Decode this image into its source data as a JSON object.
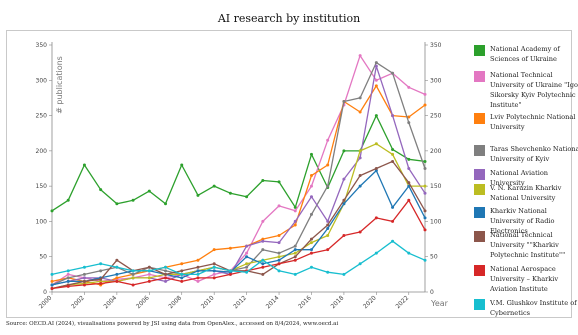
{
  "title": "AI research by institution",
  "source": "Source: OECD.AI (2024), visualisations powered by JSI using data from OpenAlex., accessed on 8/4/2024, www.oecd.ai",
  "chart_data": {
    "type": "line",
    "title": "AI research by institution",
    "ylabel": "# publications",
    "xlabel": "Year",
    "ylim": [
      0,
      350
    ],
    "yticks": [
      0,
      50,
      100,
      150,
      200,
      250,
      300,
      350
    ],
    "xlim": [
      2000,
      2023
    ],
    "xticks": [
      2000,
      2002,
      2004,
      2006,
      2008,
      2010,
      2012,
      2014,
      2016,
      2018,
      2020,
      2022
    ],
    "grid": false,
    "legend_position": "right",
    "x": [
      2000,
      2001,
      2002,
      2003,
      2004,
      2005,
      2006,
      2007,
      2008,
      2009,
      2010,
      2011,
      2012,
      2013,
      2014,
      2015,
      2016,
      2017,
      2018,
      2019,
      2020,
      2021,
      2022,
      2023
    ],
    "series": [
      {
        "name": "National Academy of Sciences of Ukraine",
        "color": "#2ca02c",
        "values": [
          115,
          130,
          180,
          145,
          125,
          130,
          143,
          125,
          180,
          137,
          150,
          140,
          135,
          158,
          156,
          120,
          195,
          148,
          200,
          200,
          250,
          202,
          188,
          185
        ]
      },
      {
        "name": "National Technical University of Ukraine \"Igor Sikorsky Kyiv Polytechnic Institute\"",
        "color": "#e377c2",
        "values": [
          10,
          25,
          20,
          15,
          18,
          20,
          25,
          20,
          25,
          15,
          25,
          30,
          55,
          100,
          122,
          115,
          150,
          215,
          265,
          335,
          300,
          310,
          290,
          280
        ]
      },
      {
        "name": "Lviv Polytechnic National University",
        "color": "#ff7f0e",
        "values": [
          15,
          20,
          15,
          10,
          20,
          25,
          30,
          35,
          40,
          45,
          60,
          62,
          65,
          75,
          80,
          95,
          165,
          180,
          270,
          255,
          292,
          250,
          248,
          265
        ]
      },
      {
        "name": "Taras Shevchenko National University of Kyiv",
        "color": "#7f7f7f",
        "values": [
          10,
          20,
          25,
          30,
          35,
          25,
          35,
          30,
          25,
          30,
          35,
          30,
          35,
          60,
          55,
          65,
          110,
          150,
          270,
          275,
          325,
          310,
          240,
          175
        ]
      },
      {
        "name": "National Aviation University",
        "color": "#9467bd",
        "values": [
          10,
          15,
          20,
          20,
          15,
          20,
          20,
          15,
          25,
          30,
          30,
          25,
          65,
          72,
          70,
          100,
          135,
          100,
          160,
          190,
          320,
          250,
          175,
          140
        ]
      },
      {
        "name": "V. N. Karazin Kharkiv National University",
        "color": "#bcbd22",
        "values": [
          5,
          10,
          12,
          15,
          15,
          20,
          20,
          25,
          25,
          30,
          35,
          30,
          40,
          45,
          50,
          55,
          70,
          80,
          125,
          200,
          210,
          195,
          150,
          150
        ]
      },
      {
        "name": "Kharkiv National University of Radio Electronics",
        "color": "#1f77b4",
        "values": [
          10,
          15,
          15,
          20,
          25,
          30,
          30,
          25,
          20,
          30,
          30,
          28,
          50,
          40,
          45,
          60,
          60,
          90,
          125,
          150,
          172,
          120,
          150,
          105
        ]
      },
      {
        "name": "National Technical University \"\"Kharkiv Polytechnic Institute\"\"",
        "color": "#8c564b",
        "values": [
          5,
          10,
          15,
          18,
          45,
          30,
          35,
          25,
          30,
          35,
          40,
          30,
          30,
          25,
          40,
          50,
          75,
          95,
          130,
          165,
          175,
          185,
          155,
          115
        ]
      },
      {
        "name": "National Aerospace University – Kharkiv Aviation Institute",
        "color": "#d62728",
        "values": [
          5,
          8,
          10,
          12,
          15,
          10,
          15,
          20,
          15,
          20,
          20,
          25,
          30,
          35,
          40,
          45,
          55,
          60,
          80,
          85,
          105,
          100,
          130,
          88
        ]
      },
      {
        "name": "V.M. Glushkov Institute of Cybernetics",
        "color": "#17becf",
        "values": [
          25,
          30,
          35,
          40,
          35,
          30,
          30,
          35,
          25,
          25,
          35,
          30,
          28,
          45,
          30,
          25,
          35,
          28,
          25,
          40,
          55,
          72,
          55,
          45
        ]
      }
    ]
  }
}
